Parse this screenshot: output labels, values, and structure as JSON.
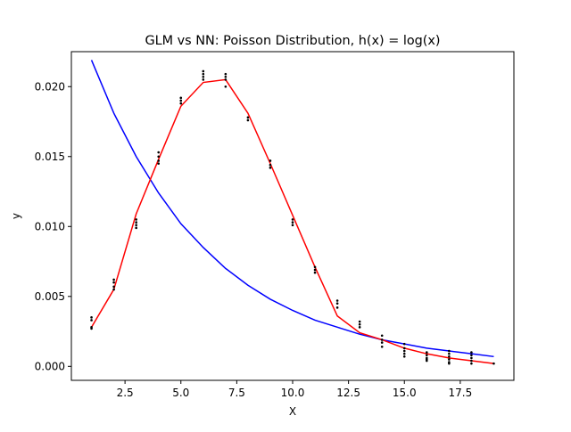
{
  "chart_data": {
    "type": "line",
    "title": "GLM vs NN: Poisson Distribution, h(x) = log(x)",
    "xlabel": "X",
    "ylabel": "y",
    "xlim": [
      0.1,
      19.9
    ],
    "ylim": [
      -0.001,
      0.0225
    ],
    "xticks": [
      2.5,
      5.0,
      7.5,
      10.0,
      12.5,
      15.0,
      17.5
    ],
    "xtick_labels": [
      "2.5",
      "5.0",
      "7.5",
      "10.0",
      "12.5",
      "15.0",
      "17.5"
    ],
    "yticks": [
      0.0,
      0.005,
      0.01,
      0.015,
      0.02
    ],
    "ytick_labels": [
      "0.000",
      "0.005",
      "0.010",
      "0.015",
      "0.020"
    ],
    "grid": false,
    "legend": false,
    "series": [
      {
        "kind": "line",
        "color": "#0000ff",
        "x": [
          1,
          2,
          3,
          4,
          5,
          6,
          7,
          8,
          9,
          10,
          11,
          12,
          13,
          14,
          15,
          16,
          17,
          18,
          19
        ],
        "y": [
          0.0219,
          0.0181,
          0.015,
          0.0124,
          0.0102,
          0.0085,
          0.007,
          0.0058,
          0.0048,
          0.004,
          0.0033,
          0.0028,
          0.0023,
          0.0019,
          0.0016,
          0.0013,
          0.0011,
          0.0009,
          0.0007
        ]
      },
      {
        "kind": "line",
        "color": "#ff0000",
        "x": [
          1,
          2,
          3,
          4,
          5,
          6,
          7,
          8,
          9,
          10,
          11,
          12,
          13,
          14,
          15,
          16,
          17,
          18,
          19
        ],
        "y": [
          0.0028,
          0.0055,
          0.0109,
          0.0148,
          0.0186,
          0.0203,
          0.0205,
          0.0181,
          0.0145,
          0.0108,
          0.0071,
          0.0036,
          0.0024,
          0.0019,
          0.0013,
          0.0009,
          0.0006,
          0.0004,
          0.0002
        ]
      },
      {
        "kind": "scatter",
        "color": "#000000",
        "points": [
          [
            1,
            0.0035
          ],
          [
            1,
            0.0033
          ],
          [
            1,
            0.0028
          ],
          [
            1,
            0.0027
          ],
          [
            2,
            0.0062
          ],
          [
            2,
            0.006
          ],
          [
            2,
            0.0057
          ],
          [
            2,
            0.0055
          ],
          [
            3,
            0.0105
          ],
          [
            3,
            0.0103
          ],
          [
            3,
            0.0101
          ],
          [
            3,
            0.0099
          ],
          [
            4,
            0.0153
          ],
          [
            4,
            0.015
          ],
          [
            4,
            0.0147
          ],
          [
            4,
            0.0145
          ],
          [
            5,
            0.0192
          ],
          [
            5,
            0.019
          ],
          [
            5,
            0.0188
          ],
          [
            6,
            0.0211
          ],
          [
            6,
            0.0209
          ],
          [
            6,
            0.0207
          ],
          [
            6,
            0.0205
          ],
          [
            7,
            0.0209
          ],
          [
            7,
            0.0207
          ],
          [
            7,
            0.0205
          ],
          [
            7,
            0.02
          ],
          [
            8,
            0.0178
          ],
          [
            8,
            0.0176
          ],
          [
            9,
            0.0147
          ],
          [
            9,
            0.0144
          ],
          [
            9,
            0.0142
          ],
          [
            10,
            0.0105
          ],
          [
            10,
            0.0103
          ],
          [
            10,
            0.0101
          ],
          [
            11,
            0.0071
          ],
          [
            11,
            0.0069
          ],
          [
            11,
            0.0067
          ],
          [
            12,
            0.0047
          ],
          [
            12,
            0.0045
          ],
          [
            12,
            0.0042
          ],
          [
            13,
            0.0032
          ],
          [
            13,
            0.003
          ],
          [
            13,
            0.0028
          ],
          [
            14,
            0.0022
          ],
          [
            14,
            0.0019
          ],
          [
            14,
            0.0017
          ],
          [
            14,
            0.0014
          ],
          [
            15,
            0.0016
          ],
          [
            15,
            0.0013
          ],
          [
            15,
            0.0011
          ],
          [
            15,
            0.0009
          ],
          [
            15,
            0.0007
          ],
          [
            16,
            0.001
          ],
          [
            16,
            0.0008
          ],
          [
            16,
            0.0006
          ],
          [
            16,
            0.0005
          ],
          [
            16,
            0.0004
          ],
          [
            17,
            0.0011
          ],
          [
            17,
            0.0009
          ],
          [
            17,
            0.0007
          ],
          [
            17,
            0.0005
          ],
          [
            17,
            0.0003
          ],
          [
            17,
            0.0002
          ],
          [
            18,
            0.001
          ],
          [
            18,
            0.0008
          ],
          [
            18,
            0.0006
          ],
          [
            18,
            0.0004
          ],
          [
            18,
            0.0002
          ],
          [
            19,
            0.0002
          ]
        ]
      }
    ]
  }
}
